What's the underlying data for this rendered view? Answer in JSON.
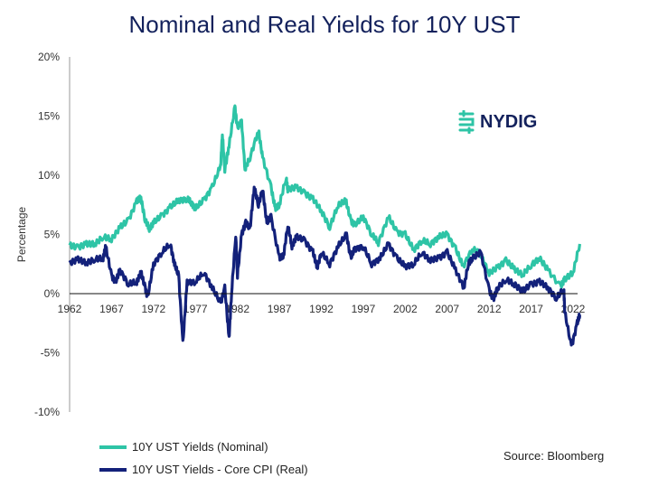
{
  "chart_data": {
    "type": "line",
    "title": "Nominal and Real Yields for 10Y UST",
    "xlabel": "",
    "ylabel": "Percentage",
    "xlim": [
      1962,
      2022
    ],
    "ylim": [
      -10,
      20
    ],
    "x_ticks": [
      "1962",
      "1967",
      "1972",
      "1977",
      "1982",
      "1987",
      "1992",
      "1997",
      "2002",
      "2007",
      "2012",
      "2017",
      "2022"
    ],
    "y_ticks": [
      "20%",
      "15%",
      "10%",
      "5%",
      "0%",
      "-5%",
      "-10%"
    ],
    "legend": "bottom-left",
    "grid": false,
    "series": [
      {
        "name": "10Y UST Yields (Nominal)",
        "color": "#2ec4a6",
        "x": [
          1962,
          1963,
          1964,
          1965,
          1966,
          1967,
          1968,
          1969,
          1970,
          1970.5,
          1971,
          1971.5,
          1972,
          1973,
          1974,
          1975,
          1976,
          1976.5,
          1977,
          1978,
          1979,
          1980,
          1980.2,
          1980.5,
          1981,
          1981.7,
          1982,
          1982.5,
          1982.9,
          1983.5,
          1984.5,
          1985,
          1986,
          1986.5,
          1987,
          1987.8,
          1988,
          1989,
          1990,
          1991,
          1992,
          1993,
          1994,
          1994.9,
          1995.5,
          1996,
          1997,
          1998,
          1998.8,
          2000,
          2001,
          2002,
          2003,
          2004,
          2005,
          2006,
          2007,
          2008,
          2008.9,
          2010,
          2011,
          2012,
          2013,
          2014,
          2015,
          2016,
          2017,
          2018,
          2019,
          2020.5,
          2021,
          2022,
          2022.8
        ],
        "y": [
          4.1,
          3.9,
          4.2,
          4.2,
          4.8,
          4.6,
          5.6,
          6.2,
          7.8,
          8.1,
          6.2,
          5.5,
          6.0,
          6.6,
          7.3,
          7.9,
          8.0,
          7.7,
          7.2,
          7.9,
          9.0,
          10.8,
          13.5,
          10.5,
          12.5,
          15.8,
          14.0,
          14.5,
          10.5,
          11.5,
          13.8,
          11.5,
          9.0,
          7.2,
          7.5,
          9.8,
          8.8,
          9.0,
          8.5,
          8.0,
          7.0,
          5.6,
          7.5,
          7.9,
          6.2,
          5.8,
          6.5,
          5.0,
          4.3,
          6.5,
          5.2,
          5.0,
          3.7,
          4.5,
          4.2,
          4.8,
          5.0,
          3.8,
          2.3,
          3.8,
          3.3,
          1.7,
          2.2,
          2.8,
          2.1,
          1.6,
          2.4,
          3.0,
          2.0,
          0.6,
          1.2,
          1.8,
          4.2
        ]
      },
      {
        "name": "10Y UST Yields - Core CPI (Real)",
        "color": "#13217a",
        "x": [
          1962,
          1963,
          1964,
          1965,
          1966,
          1966.3,
          1967,
          1967.5,
          1968,
          1969,
          1970,
          1970.5,
          1971,
          1971.3,
          1972,
          1973,
          1974,
          1974.5,
          1975,
          1975.5,
          1976,
          1977,
          1978,
          1979,
          1980,
          1980.5,
          1981,
          1981.3,
          1981.8,
          1982,
          1982.5,
          1983,
          1983.5,
          1984,
          1984.5,
          1985,
          1985.5,
          1986,
          1987,
          1987.5,
          1988,
          1988.5,
          1989,
          1990,
          1991,
          1991.5,
          1992,
          1993,
          1994,
          1995,
          1995.5,
          1996,
          1997,
          1998,
          1999,
          2000,
          2001,
          2002,
          2003,
          2004,
          2005,
          2006,
          2007,
          2008,
          2009,
          2009.5,
          2010,
          2011,
          2012,
          2012.5,
          2013,
          2014,
          2015,
          2016,
          2017,
          2018,
          2019,
          2020,
          2020.9,
          2021,
          2021.8,
          2022.5,
          2022.8
        ],
        "y": [
          2.6,
          2.9,
          2.6,
          2.9,
          3.0,
          4.0,
          1.5,
          1.0,
          2.0,
          0.8,
          1.0,
          1.8,
          0.5,
          -0.3,
          2.5,
          3.5,
          4.2,
          2.5,
          1.5,
          -4.2,
          1.0,
          1.0,
          1.8,
          0.5,
          -0.8,
          0.5,
          -3.8,
          0.0,
          5.0,
          1.5,
          5.0,
          6.0,
          5.5,
          9.0,
          7.5,
          8.8,
          6.0,
          6.5,
          3.0,
          3.2,
          5.8,
          4.0,
          4.8,
          4.5,
          3.5,
          2.2,
          3.5,
          2.5,
          4.0,
          5.0,
          3.0,
          3.8,
          4.0,
          2.5,
          3.0,
          4.2,
          3.0,
          2.3,
          2.5,
          3.5,
          2.8,
          3.0,
          3.5,
          2.0,
          0.5,
          2.5,
          3.0,
          3.5,
          0.3,
          -0.5,
          0.5,
          1.2,
          0.8,
          0.2,
          0.8,
          1.0,
          0.5,
          -0.4,
          0.4,
          -1.5,
          -4.5,
          -2.5,
          -1.8
        ]
      }
    ]
  },
  "logo": "NYDIG",
  "source": "Source: Bloomberg"
}
